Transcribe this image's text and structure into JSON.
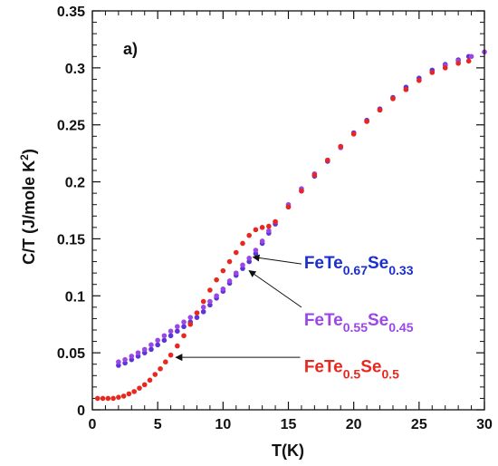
{
  "chart_data": {
    "type": "scatter",
    "panel_label": "a)",
    "xlabel": "T(K)",
    "ylabel": {
      "main": "C/T (J/mole K",
      "sup": "2",
      "close": ")"
    },
    "xlim": [
      0,
      30
    ],
    "ylim": [
      0,
      0.35
    ],
    "x_ticks": [
      "0",
      "5",
      "10",
      "15",
      "20",
      "25",
      "30"
    ],
    "y_ticks": [
      "0",
      "0.05",
      "0.1",
      "0.15",
      "0.2",
      "0.25",
      "0.3",
      "0.35"
    ],
    "x_tick_values": [
      0,
      5,
      10,
      15,
      20,
      25,
      30
    ],
    "y_tick_values": [
      0,
      0.05,
      0.1,
      0.15,
      0.2,
      0.25,
      0.3,
      0.35
    ],
    "grid": false,
    "series": [
      {
        "color": "#5b35d8",
        "points": [
          [
            2.0,
            0.039
          ],
          [
            2.5,
            0.041
          ],
          [
            3.0,
            0.044
          ],
          [
            3.5,
            0.047
          ],
          [
            4.0,
            0.05
          ],
          [
            4.5,
            0.053
          ],
          [
            5.0,
            0.057
          ],
          [
            5.5,
            0.061
          ],
          [
            6.0,
            0.065
          ],
          [
            6.5,
            0.069
          ],
          [
            7.0,
            0.073
          ],
          [
            7.5,
            0.077
          ],
          [
            8.0,
            0.081
          ],
          [
            8.5,
            0.086
          ],
          [
            9.0,
            0.092
          ],
          [
            9.5,
            0.098
          ],
          [
            10.0,
            0.104
          ],
          [
            10.5,
            0.111
          ],
          [
            11.0,
            0.118
          ],
          [
            11.5,
            0.124
          ],
          [
            12.0,
            0.13
          ],
          [
            12.5,
            0.137
          ],
          [
            13.0,
            0.146
          ],
          [
            13.5,
            0.155
          ],
          [
            14.0,
            0.163
          ],
          [
            15.0,
            0.178
          ],
          [
            16.0,
            0.192
          ],
          [
            17.0,
            0.205
          ],
          [
            18.0,
            0.218
          ],
          [
            19.0,
            0.231
          ],
          [
            20.0,
            0.243
          ],
          [
            21.0,
            0.254
          ],
          [
            22.0,
            0.264
          ],
          [
            23.0,
            0.274
          ],
          [
            24.0,
            0.283
          ],
          [
            25.0,
            0.291
          ],
          [
            26.0,
            0.298
          ],
          [
            27.0,
            0.303
          ],
          [
            28.0,
            0.307
          ],
          [
            28.8,
            0.31
          ]
        ]
      },
      {
        "color": "#9b46e6",
        "points": [
          [
            2.0,
            0.042
          ],
          [
            2.5,
            0.044
          ],
          [
            3.0,
            0.047
          ],
          [
            3.5,
            0.05
          ],
          [
            4.0,
            0.053
          ],
          [
            4.5,
            0.057
          ],
          [
            5.0,
            0.061
          ],
          [
            5.5,
            0.065
          ],
          [
            6.0,
            0.069
          ],
          [
            6.5,
            0.073
          ],
          [
            7.0,
            0.077
          ],
          [
            7.5,
            0.081
          ],
          [
            8.0,
            0.085
          ],
          [
            8.5,
            0.09
          ],
          [
            9.0,
            0.095
          ],
          [
            9.5,
            0.1
          ],
          [
            10.0,
            0.106
          ],
          [
            10.5,
            0.113
          ],
          [
            11.0,
            0.12
          ],
          [
            11.5,
            0.127
          ],
          [
            12.0,
            0.133
          ],
          [
            12.5,
            0.14
          ],
          [
            13.0,
            0.148
          ],
          [
            13.5,
            0.157
          ],
          [
            14.0,
            0.165
          ],
          [
            15.0,
            0.18
          ],
          [
            16.0,
            0.194
          ],
          [
            17.0,
            0.207
          ],
          [
            18.0,
            0.219
          ],
          [
            19.0,
            0.23
          ],
          [
            20.0,
            0.242
          ],
          [
            21.0,
            0.253
          ],
          [
            22.0,
            0.263
          ],
          [
            23.0,
            0.273
          ],
          [
            24.0,
            0.281
          ],
          [
            25.0,
            0.289
          ],
          [
            26.0,
            0.296
          ],
          [
            27.0,
            0.302
          ],
          [
            28.0,
            0.306
          ],
          [
            29.0,
            0.31
          ],
          [
            30.0,
            0.314
          ]
        ]
      },
      {
        "color": "#e8281f",
        "points": [
          [
            0.4,
            0.01
          ],
          [
            0.8,
            0.01
          ],
          [
            1.2,
            0.01
          ],
          [
            1.6,
            0.01
          ],
          [
            2.0,
            0.011
          ],
          [
            2.4,
            0.012
          ],
          [
            2.8,
            0.014
          ],
          [
            3.2,
            0.016
          ],
          [
            3.6,
            0.019
          ],
          [
            4.0,
            0.022
          ],
          [
            4.4,
            0.026
          ],
          [
            4.8,
            0.031
          ],
          [
            5.2,
            0.036
          ],
          [
            5.6,
            0.042
          ],
          [
            6.0,
            0.048
          ],
          [
            6.5,
            0.056
          ],
          [
            7.0,
            0.065
          ],
          [
            7.5,
            0.075
          ],
          [
            8.0,
            0.085
          ],
          [
            8.5,
            0.095
          ],
          [
            9.0,
            0.105
          ],
          [
            9.5,
            0.114
          ],
          [
            10.0,
            0.122
          ],
          [
            10.5,
            0.13
          ],
          [
            11.0,
            0.138
          ],
          [
            11.5,
            0.146
          ],
          [
            12.0,
            0.153
          ],
          [
            12.5,
            0.158
          ],
          [
            13.0,
            0.16
          ],
          [
            13.5,
            0.161
          ],
          [
            14.0,
            0.165
          ],
          [
            15.0,
            0.178
          ],
          [
            16.0,
            0.192
          ],
          [
            17.0,
            0.206
          ],
          [
            18.0,
            0.219
          ],
          [
            19.0,
            0.231
          ],
          [
            20.0,
            0.242
          ],
          [
            21.0,
            0.253
          ],
          [
            22.0,
            0.263
          ],
          [
            23.0,
            0.273
          ],
          [
            24.0,
            0.281
          ],
          [
            25.0,
            0.289
          ],
          [
            26.0,
            0.296
          ],
          [
            27.0,
            0.3
          ],
          [
            28.0,
            0.304
          ],
          [
            28.8,
            0.306
          ]
        ]
      }
    ],
    "annotations": [
      {
        "base": "FeTe",
        "sub1": "0.67",
        "mid": "Se",
        "sub2": "0.33",
        "color": "#1a2fd0",
        "label_at": [
          16.2,
          0.124
        ],
        "arrow_from": [
          16.0,
          0.128
        ],
        "arrow_to": [
          12.3,
          0.134
        ]
      },
      {
        "base": "FeTe",
        "sub1": "0.55",
        "mid": "Se",
        "sub2": "0.45",
        "color": "#9b46e6",
        "label_at": [
          16.2,
          0.074
        ],
        "arrow_from": [
          16.0,
          0.09
        ],
        "arrow_to": [
          12.0,
          0.122
        ]
      },
      {
        "base": "FeTe",
        "sub1": "0.5",
        "mid": "Se",
        "sub2": "0.5",
        "color": "#e8281f",
        "label_at": [
          16.2,
          0.033
        ],
        "arrow_from": [
          15.9,
          0.046
        ],
        "arrow_to": [
          6.4,
          0.046
        ]
      }
    ]
  }
}
